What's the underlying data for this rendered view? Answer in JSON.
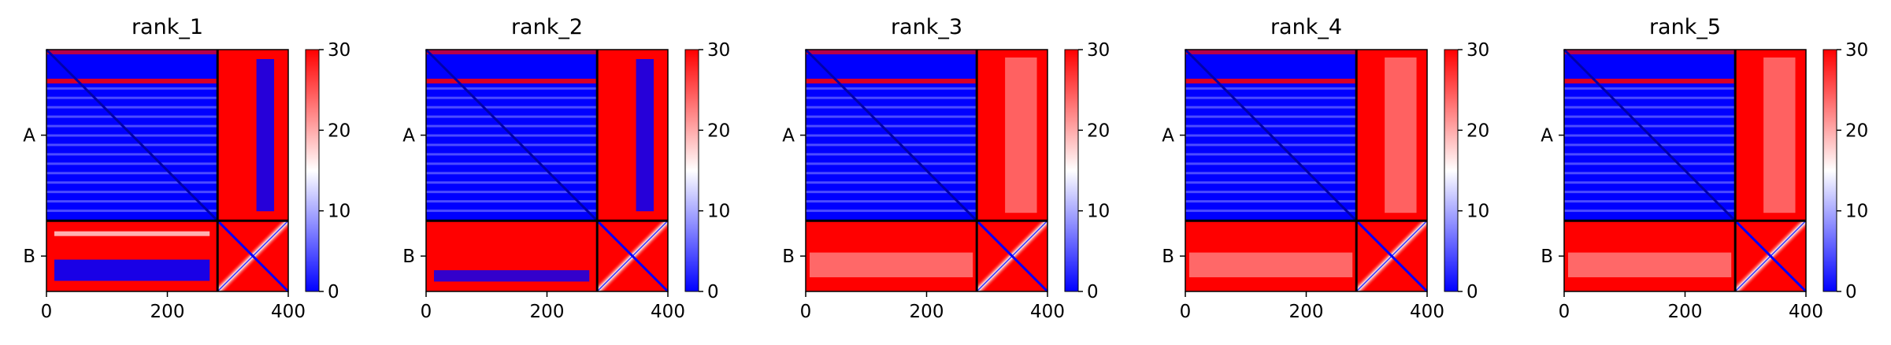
{
  "colors": {
    "low": "#0000ff",
    "mid": "#ffffff",
    "high": "#ff0000",
    "axis": "#000000"
  },
  "chart_data": [
    {
      "type": "heatmap",
      "title": "rank_1",
      "x_ticks": [
        0,
        200,
        400
      ],
      "y_tick_labels": [
        "A",
        "B"
      ],
      "chain_boundary": 283,
      "length": 400,
      "colorbar": {
        "min": 0,
        "max": 30,
        "ticks": [
          0,
          10,
          20,
          30
        ]
      },
      "blocks": {
        "AA": "low",
        "AB": "high",
        "BA": "mixed",
        "BB": "diagonal"
      }
    },
    {
      "type": "heatmap",
      "title": "rank_2",
      "x_ticks": [
        0,
        200,
        400
      ],
      "y_tick_labels": [
        "A",
        "B"
      ],
      "chain_boundary": 283,
      "length": 400,
      "colorbar": {
        "min": 0,
        "max": 30,
        "ticks": [
          0,
          10,
          20,
          30
        ]
      },
      "blocks": {
        "AA": "low",
        "AB": "high",
        "BA": "mostly-high",
        "BB": "diagonal"
      }
    },
    {
      "type": "heatmap",
      "title": "rank_3",
      "x_ticks": [
        0,
        200,
        400
      ],
      "y_tick_labels": [
        "A",
        "B"
      ],
      "chain_boundary": 283,
      "length": 400,
      "colorbar": {
        "min": 0,
        "max": 30,
        "ticks": [
          0,
          10,
          20,
          30
        ]
      },
      "blocks": {
        "AA": "low",
        "AB": "high",
        "BA": "high",
        "BB": "diagonal"
      }
    },
    {
      "type": "heatmap",
      "title": "rank_4",
      "x_ticks": [
        0,
        200,
        400
      ],
      "y_tick_labels": [
        "A",
        "B"
      ],
      "chain_boundary": 283,
      "length": 400,
      "colorbar": {
        "min": 0,
        "max": 30,
        "ticks": [
          0,
          10,
          20,
          30
        ]
      },
      "blocks": {
        "AA": "low",
        "AB": "high",
        "BA": "high",
        "BB": "diagonal"
      }
    },
    {
      "type": "heatmap",
      "title": "rank_5",
      "x_ticks": [
        0,
        200,
        400
      ],
      "y_tick_labels": [
        "A",
        "B"
      ],
      "chain_boundary": 283,
      "length": 400,
      "colorbar": {
        "min": 0,
        "max": 30,
        "ticks": [
          0,
          10,
          20,
          30
        ]
      },
      "blocks": {
        "AA": "low",
        "AB": "high",
        "BA": "high",
        "BB": "diagonal"
      }
    }
  ]
}
